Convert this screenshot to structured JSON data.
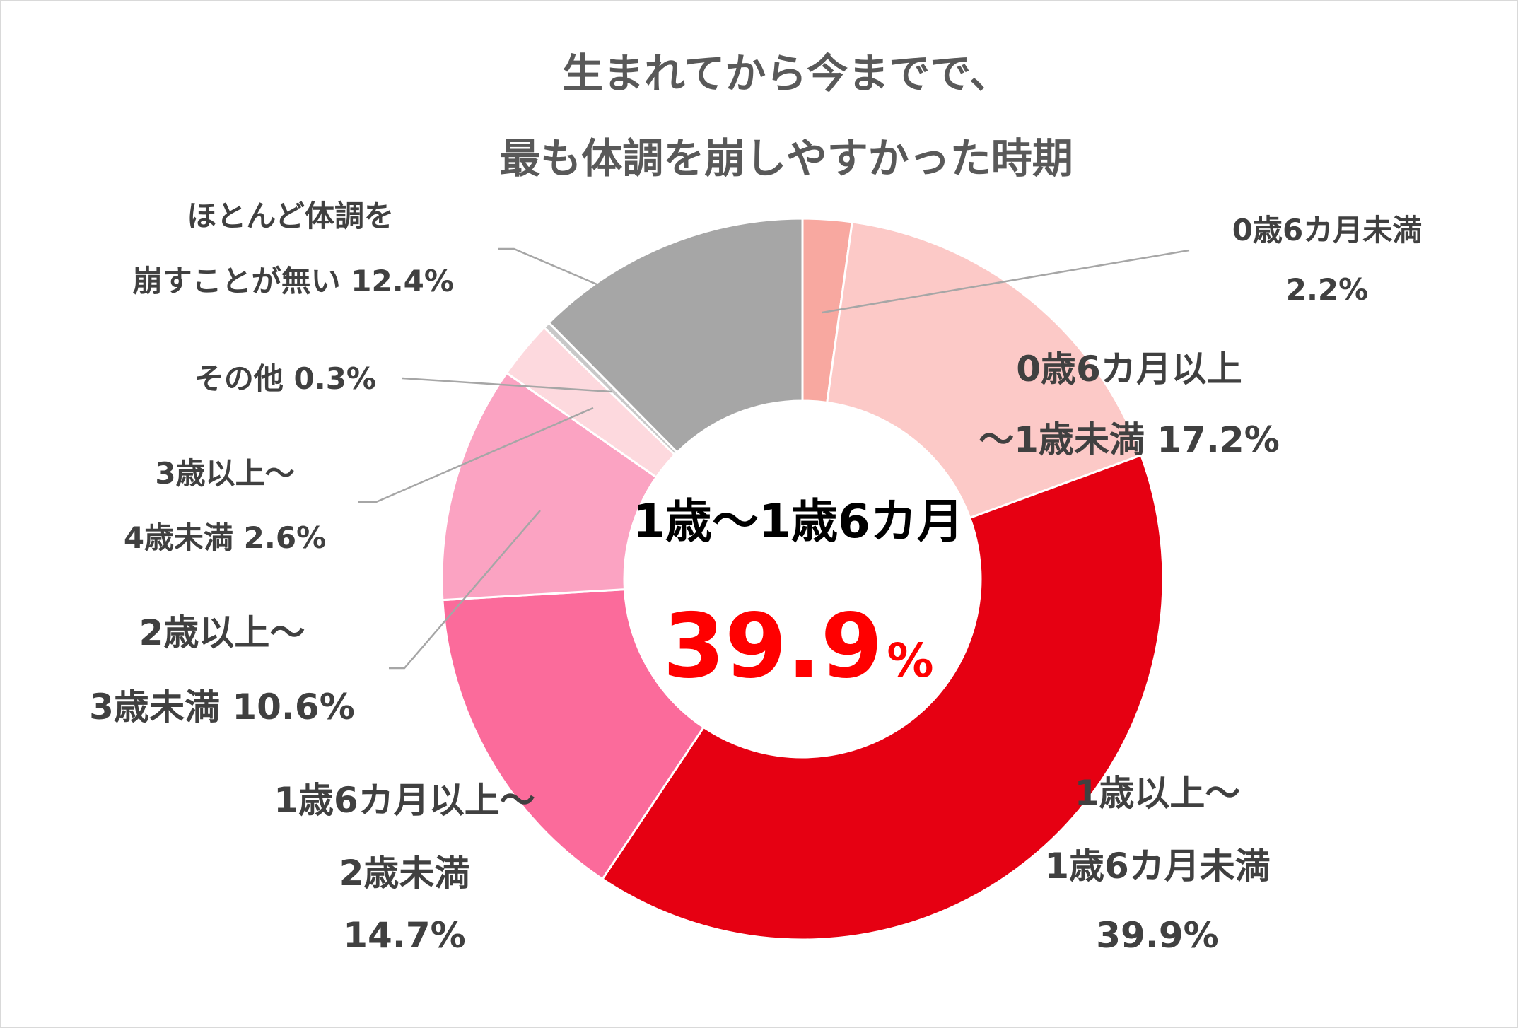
{
  "chart_data": {
    "type": "pie",
    "donut": true,
    "title_lines": [
      "生まれてから今までで、",
      "最も体調を崩しやすかった時期"
    ],
    "slices": [
      {
        "key": "s1",
        "value": 2.2,
        "color": "#f8a8a0",
        "label_lines": [
          "0歳6カ月未満",
          "2.2%"
        ]
      },
      {
        "key": "s2",
        "value": 17.2,
        "color": "#fcc9c7",
        "label_lines": [
          "0歳6カ月以上",
          "～1歳未満 17.2%"
        ]
      },
      {
        "key": "s3",
        "value": 39.9,
        "color": "#e60012",
        "label_lines": [
          "1歳以上～",
          "1歳6カ月未満",
          "39.9%"
        ]
      },
      {
        "key": "s4",
        "value": 14.7,
        "color": "#fb6b9b",
        "label_lines": [
          "1歳6カ月以上～",
          "2歳未満",
          "14.7%"
        ]
      },
      {
        "key": "s5",
        "value": 10.6,
        "color": "#fba3c2",
        "label_lines": [
          "2歳以上～",
          "3歳未満 10.6%"
        ]
      },
      {
        "key": "s6",
        "value": 2.6,
        "color": "#fdd9de",
        "label_lines": [
          "3歳以上～",
          "4歳未満 2.6%"
        ]
      },
      {
        "key": "s7",
        "value": 0.3,
        "color": "#c8c8c8",
        "label_lines": [
          "その他 0.3%"
        ]
      },
      {
        "key": "s8",
        "value": 12.4,
        "color": "#a6a6a6",
        "label_lines": [
          "ほとんど体調を",
          "崩すことが無い 12.4%"
        ]
      }
    ],
    "center": {
      "heading": "1歳～1歳6カ月",
      "value": "39.9",
      "unit": "%",
      "value_color": "#ff0000"
    }
  }
}
